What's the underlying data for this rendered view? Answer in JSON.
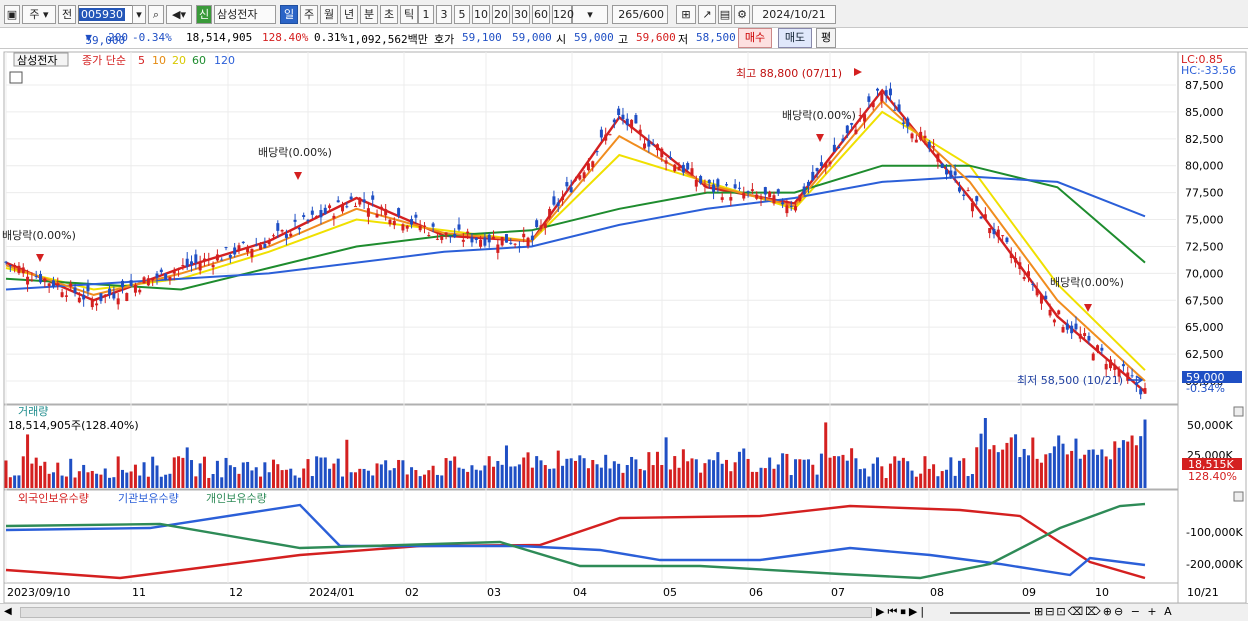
{
  "toolbar": {
    "period_box": "주",
    "prev": "전",
    "code": "005930",
    "sin": "신",
    "name": "삼성전자",
    "periods": [
      "일",
      "주",
      "월",
      "년",
      "분",
      "초",
      "틱"
    ],
    "active_period": "일",
    "intervals": [
      "1",
      "3",
      "5",
      "10",
      "20",
      "30",
      "60",
      "120"
    ],
    "count": "265",
    "total": "/600",
    "date": "2024/10/21"
  },
  "quote": {
    "price": "59,000",
    "change": "200",
    "change_pct": "-0.34%",
    "volume": "18,514,905",
    "vol_ratio": "128.40%",
    "turnover": "0.31%",
    "amount": "1,092,562백만",
    "bid_label": "호가",
    "bid": "59,100",
    "ask": "59,000",
    "open_label": "시",
    "open": "59,000",
    "high_label": "고",
    "high": "59,600",
    "low_label": "저",
    "low": "58,500",
    "buy": "매수",
    "sell": "매도",
    "avg": "평"
  },
  "price_pane": {
    "title": "삼성전자",
    "ma_label": "종가 단순",
    "ma_periods": [
      "5",
      "10",
      "20",
      "60",
      "120"
    ],
    "ma_colors": [
      "#d42020",
      "#f08c1e",
      "#f0e000",
      "#1e8c2e",
      "#2b5fd8"
    ],
    "lc": "LC:0.85",
    "hc": "HC:-33.56",
    "y_ticks": [
      "87,500",
      "85,000",
      "82,500",
      "80,000",
      "77,500",
      "75,000",
      "72,500",
      "70,000",
      "67,500",
      "65,000",
      "62,500",
      "60,000"
    ],
    "last_price": "59,000",
    "last_pct": "-0.34%",
    "high_note": "최고 88,800 (07/11)",
    "low_note": "최저 58,500 (10/21)",
    "dividend_notes": [
      "배당락(0.00%)",
      "배당락(0.00%)",
      "배당락(0.00%)",
      "배당락(0.00%)"
    ]
  },
  "volume_pane": {
    "title": "거래량",
    "value": "18,514,905주(128.40%)",
    "y_ticks": [
      "50,000K",
      "25,000K"
    ],
    "last_vol": "18,515K",
    "last_pct": "128.40%"
  },
  "holding_pane": {
    "series": [
      "외국인보유수량",
      "기관보유수량",
      "개인보유수량"
    ],
    "colors": [
      "#d42020",
      "#2b5fd8",
      "#2e8b57"
    ],
    "y_ticks": [
      "-100,000K",
      "-200,000K"
    ]
  },
  "x_axis": {
    "labels": [
      "2023/09/10",
      "11",
      "12",
      "2024/01",
      "02",
      "03",
      "04",
      "05",
      "06",
      "07",
      "08",
      "09",
      "10",
      "10/21"
    ]
  },
  "chart_data": {
    "type": "line",
    "x": [
      "2023/09",
      "2023/10",
      "2023/11",
      "2023/12",
      "2024/01",
      "2024/02",
      "2024/03",
      "2024/04",
      "2024/05",
      "2024/06",
      "2024/07",
      "2024/08",
      "2024/09",
      "2024/10"
    ],
    "series": [
      {
        "name": "5",
        "values": [
          71000,
          67500,
          70500,
          73000,
          77000,
          73500,
          73000,
          84500,
          78000,
          76500,
          87000,
          77000,
          66000,
          59000
        ]
      },
      {
        "name": "20",
        "values": [
          70500,
          68500,
          69500,
          72000,
          75000,
          74000,
          73000,
          81000,
          78500,
          76000,
          85000,
          80000,
          69000,
          61000
        ]
      },
      {
        "name": "60",
        "values": [
          69500,
          69000,
          68500,
          70500,
          72500,
          73500,
          74000,
          76000,
          77500,
          77500,
          80000,
          80000,
          78000,
          71000
        ]
      },
      {
        "name": "120",
        "values": [
          68500,
          69000,
          69500,
          70000,
          71000,
          72000,
          72500,
          74500,
          76000,
          77000,
          78500,
          79000,
          78500,
          75300
        ]
      }
    ]
  }
}
